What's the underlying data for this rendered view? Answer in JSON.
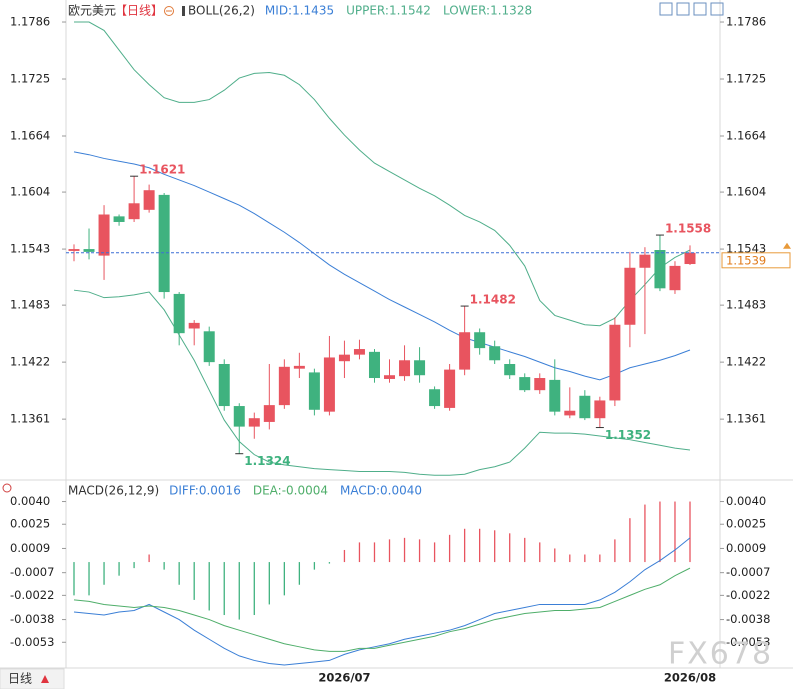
{
  "chart_data": [
    {
      "type": "candlestick",
      "title": "欧元美元",
      "period": "【日线】",
      "indicator": "BOLL(26,2)",
      "up_color": "#e8545f",
      "down_color": "#3fb27f",
      "open": [
        1.1541,
        1.1543,
        1.1536,
        1.1578,
        1.1575,
        1.1585,
        1.1601,
        1.1495,
        1.1458,
        1.1455,
        1.142,
        1.1375,
        1.1353,
        1.1358,
        1.1376,
        1.1415,
        1.1411,
        1.1369,
        1.1423,
        1.143,
        1.1433,
        1.1404,
        1.1407,
        1.1424,
        1.1393,
        1.1373,
        1.1414,
        1.1454,
        1.1439,
        1.142,
        1.1406,
        1.1392,
        1.1403,
        1.1365,
        1.1386,
        1.1362,
        1.1381,
        1.1462,
        1.1523,
        1.1542,
        1.1499,
        1.1527
      ],
      "high": [
        1.1548,
        1.1565,
        1.159,
        1.158,
        1.1621,
        1.1612,
        1.1603,
        1.1497,
        1.1467,
        1.146,
        1.1425,
        1.1378,
        1.1368,
        1.142,
        1.1425,
        1.1432,
        1.1415,
        1.145,
        1.1445,
        1.1446,
        1.1436,
        1.1425,
        1.144,
        1.1438,
        1.1396,
        1.142,
        1.1482,
        1.1458,
        1.1445,
        1.1425,
        1.141,
        1.141,
        1.1425,
        1.1395,
        1.1392,
        1.1385,
        1.147,
        1.154,
        1.1545,
        1.1558,
        1.153,
        1.1547
      ],
      "low": [
        1.153,
        1.1532,
        1.151,
        1.1568,
        1.1572,
        1.1582,
        1.149,
        1.144,
        1.144,
        1.1418,
        1.137,
        1.1324,
        1.134,
        1.135,
        1.1372,
        1.1405,
        1.1365,
        1.1365,
        1.1405,
        1.1425,
        1.14,
        1.14,
        1.1402,
        1.14,
        1.1372,
        1.137,
        1.1408,
        1.143,
        1.142,
        1.1404,
        1.139,
        1.1388,
        1.1365,
        1.1362,
        1.136,
        1.1352,
        1.1375,
        1.1438,
        1.1452,
        1.1498,
        1.1495,
        1.1526
      ],
      "close": [
        1.1543,
        1.154,
        1.158,
        1.1572,
        1.1592,
        1.1606,
        1.1497,
        1.1453,
        1.1464,
        1.1422,
        1.1375,
        1.1353,
        1.1362,
        1.1376,
        1.1417,
        1.1418,
        1.1371,
        1.1427,
        1.143,
        1.1436,
        1.1405,
        1.1408,
        1.1424,
        1.1408,
        1.1375,
        1.1414,
        1.1454,
        1.1437,
        1.1424,
        1.1408,
        1.1392,
        1.1405,
        1.1369,
        1.137,
        1.1362,
        1.1381,
        1.1462,
        1.1523,
        1.1537,
        1.1501,
        1.1525,
        1.1539
      ],
      "series": [
        {
          "name": "MID:1.1435",
          "color": "#3b7fd6",
          "values": [
            1.1647,
            1.1644,
            1.164,
            1.1637,
            1.1634,
            1.163,
            1.1623,
            1.1617,
            1.1611,
            1.1604,
            1.1597,
            1.159,
            1.1581,
            1.1571,
            1.1561,
            1.155,
            1.1538,
            1.1526,
            1.1516,
            1.1507,
            1.1498,
            1.1489,
            1.1481,
            1.1473,
            1.1465,
            1.1456,
            1.1448,
            1.1443,
            1.1438,
            1.1433,
            1.1428,
            1.1422,
            1.1416,
            1.1412,
            1.1407,
            1.1403,
            1.1409,
            1.1416,
            1.142,
            1.1424,
            1.1429,
            1.1435
          ]
        },
        {
          "name": "UPPER:1.1542",
          "color": "#4fae8a",
          "values": [
            1.1786,
            1.1786,
            1.1777,
            1.1756,
            1.1735,
            1.1719,
            1.1705,
            1.17,
            1.17,
            1.1703,
            1.1713,
            1.1726,
            1.1731,
            1.1732,
            1.1729,
            1.1719,
            1.1703,
            1.1683,
            1.1665,
            1.1649,
            1.1635,
            1.1626,
            1.1617,
            1.1608,
            1.16,
            1.159,
            1.1579,
            1.1572,
            1.1563,
            1.1547,
            1.1525,
            1.1488,
            1.1472,
            1.1467,
            1.1462,
            1.1461,
            1.1469,
            1.1488,
            1.1505,
            1.1523,
            1.1534,
            1.1542
          ]
        },
        {
          "name": "LOWER:1.1328",
          "color": "#4fae8a",
          "values": [
            1.1499,
            1.1497,
            1.1491,
            1.1492,
            1.1494,
            1.1497,
            1.1478,
            1.1451,
            1.1424,
            1.1392,
            1.136,
            1.1337,
            1.1323,
            1.1315,
            1.1312,
            1.131,
            1.1308,
            1.1307,
            1.1306,
            1.1305,
            1.1305,
            1.1305,
            1.1304,
            1.1302,
            1.1301,
            1.1301,
            1.1302,
            1.1307,
            1.131,
            1.1315,
            1.133,
            1.1347,
            1.1346,
            1.1346,
            1.1345,
            1.1343,
            1.1341,
            1.1339,
            1.1336,
            1.1333,
            1.133,
            1.1328
          ]
        }
      ],
      "highlights": [
        1.1621,
        1.1324,
        1.1482,
        1.1352,
        1.1558
      ],
      "last_price": 1.1539,
      "ylim": [
        1.1298,
        1.1801
      ],
      "yticks": [
        1.1786,
        1.1725,
        1.1664,
        1.1604,
        1.1543,
        1.1483,
        1.1422,
        1.1361
      ]
    },
    {
      "type": "macd",
      "title": "MACD(26,12,9)",
      "categories": [
        null,
        null,
        null,
        null,
        null,
        null,
        null,
        null,
        null,
        null,
        null,
        null,
        null,
        null,
        null,
        null,
        null,
        null,
        "2026/07",
        null,
        null,
        null,
        null,
        null,
        null,
        null,
        null,
        null,
        null,
        null,
        null,
        null,
        null,
        null,
        null,
        null,
        null,
        null,
        null,
        null,
        null,
        "2026/08"
      ],
      "series": [
        {
          "name": "DIFF:0.0016",
          "color": "#3b7fd6",
          "values": [
            -0.0033,
            -0.0034,
            -0.0035,
            -0.0033,
            -0.0032,
            -0.0028,
            -0.0033,
            -0.0038,
            -0.0045,
            -0.0051,
            -0.0057,
            -0.0062,
            -0.0065,
            -0.0067,
            -0.0068,
            -0.0067,
            -0.0066,
            -0.0065,
            -0.0061,
            -0.0058,
            -0.0056,
            -0.0054,
            -0.0051,
            -0.0049,
            -0.0047,
            -0.0045,
            -0.0042,
            -0.0038,
            -0.0034,
            -0.0032,
            -0.003,
            -0.0028,
            -0.0028,
            -0.0028,
            -0.0028,
            -0.0025,
            -0.002,
            -0.0013,
            -0.0005,
            0.0001,
            0.0008,
            0.0016
          ]
        },
        {
          "name": "DEA:-0.0004",
          "color": "#4fae6a",
          "values": [
            -0.0025,
            -0.0026,
            -0.0028,
            -0.0029,
            -0.003,
            -0.0029,
            -0.003,
            -0.0032,
            -0.0035,
            -0.0038,
            -0.0042,
            -0.0045,
            -0.0048,
            -0.0051,
            -0.0054,
            -0.0056,
            -0.0058,
            -0.0059,
            -0.0059,
            -0.0057,
            -0.0057,
            -0.0055,
            -0.0053,
            -0.0051,
            -0.0049,
            -0.0046,
            -0.0044,
            -0.0041,
            -0.0038,
            -0.0036,
            -0.0034,
            -0.0033,
            -0.0032,
            -0.0032,
            -0.0031,
            -0.003,
            -0.0026,
            -0.0022,
            -0.0018,
            -0.0015,
            -0.0009,
            -0.0004
          ]
        }
      ],
      "histogram": {
        "name": "MACD:0.0040",
        "up_color": "#e8545f",
        "down_color": "#3fb27f",
        "values": [
          -0.0022,
          -0.0022,
          -0.0015,
          -0.0009,
          -0.0004,
          0.0005,
          -0.0005,
          -0.0015,
          -0.0025,
          -0.0032,
          -0.0035,
          -0.0038,
          -0.0035,
          -0.0028,
          -0.0022,
          -0.0015,
          -0.0005,
          -0.0001,
          0.0008,
          0.0013,
          0.0013,
          0.0015,
          0.0016,
          0.0015,
          0.0013,
          0.0018,
          0.0022,
          0.0022,
          0.0021,
          0.0019,
          0.0016,
          0.0013,
          0.0009,
          0.0005,
          0.0005,
          0.0005,
          0.0015,
          0.0029,
          0.0038,
          0.004,
          0.004,
          0.004
        ]
      },
      "ylim": [
        -0.007,
        0.0043
      ],
      "yticks": [
        {
          "value": 0.004,
          "label": "0.0040"
        },
        0.0025,
        0.0009,
        -0.0007,
        -0.0022,
        -0.0038,
        -0.0053
      ]
    }
  ],
  "period_button": "日线",
  "watermark": "FX678"
}
